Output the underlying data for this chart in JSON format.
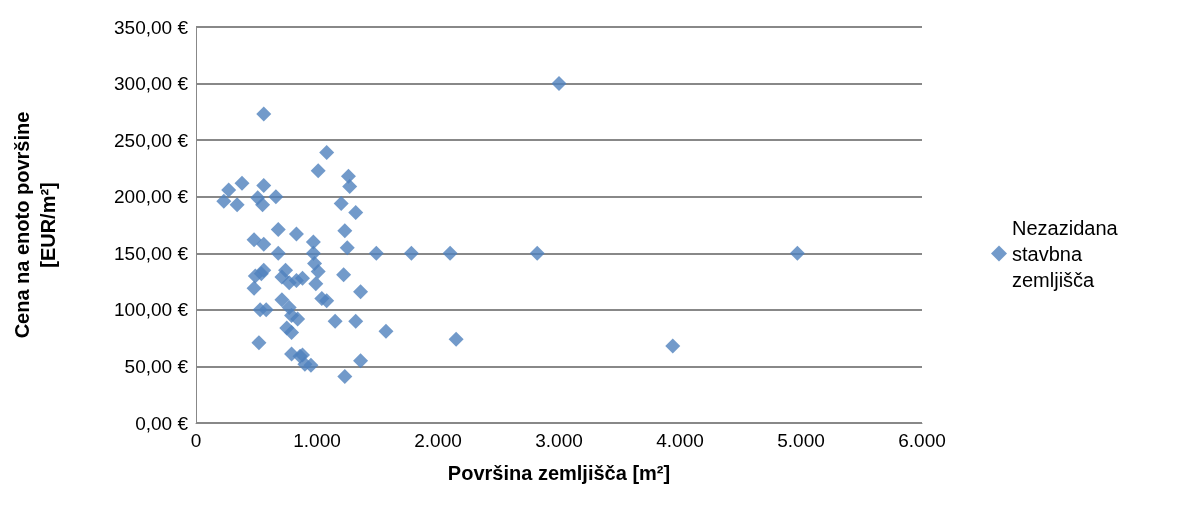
{
  "chart_data": {
    "type": "scatter",
    "xlabel": "Površina zemljišča [m²]",
    "ylabel": "Cena na enoto površine [EUR/m²]",
    "x": [
      3000,
      4970,
      2820,
      2100,
      1780,
      1490,
      3940,
      2150,
      1570,
      1360,
      1230,
      1320,
      1360,
      1220,
      1250,
      1230,
      1200,
      1320,
      1270,
      1260,
      1080,
      1010,
      560,
      510,
      660,
      340,
      230,
      270,
      380,
      560,
      550,
      680,
      830,
      480,
      560,
      680,
      560,
      740,
      490,
      540,
      710,
      770,
      830,
      880,
      970,
      970,
      980,
      1010,
      990,
      1040,
      1080,
      480,
      530,
      580,
      710,
      770,
      790,
      840,
      750,
      790,
      1150,
      520,
      790,
      880,
      900,
      860,
      950
    ],
    "series": [
      {
        "name": "Nezazidana stavbna zemljišča",
        "color": "#4f81bd",
        "values": [
          300,
          150,
          150,
          150,
          150,
          150,
          68,
          74,
          81,
          55,
          41,
          90,
          116,
          131,
          155,
          170,
          194,
          186,
          209,
          218,
          239,
          223,
          273,
          199,
          200,
          193,
          196,
          206,
          212,
          210,
          193,
          171,
          167,
          162,
          158,
          150,
          135,
          135,
          130,
          132,
          129,
          124,
          126,
          128,
          160,
          150,
          141,
          134,
          123,
          110,
          108,
          119,
          100,
          100,
          109,
          102,
          95,
          92,
          84,
          80,
          90,
          71,
          61,
          60,
          52,
          59,
          51
        ]
      }
    ],
    "xlim": [
      0,
      6000
    ],
    "xticks": [
      {
        "value": 0,
        "label": "0"
      },
      {
        "value": 1000,
        "label": "1.000"
      },
      {
        "value": 2000,
        "label": "2.000"
      },
      {
        "value": 3000,
        "label": "3.000"
      },
      {
        "value": 4000,
        "label": "4.000"
      },
      {
        "value": 5000,
        "label": "5.000"
      },
      {
        "value": 6000,
        "label": "6.000"
      }
    ],
    "ylim": [
      0,
      350
    ],
    "yticks": [
      {
        "value": 0,
        "label": "0,00 €"
      },
      {
        "value": 50,
        "label": "50,00 €"
      },
      {
        "value": 100,
        "label": "100,00 €"
      },
      {
        "value": 150,
        "label": "150,00 €"
      },
      {
        "value": 200,
        "label": "200,00 €"
      },
      {
        "value": 250,
        "label": "250,00 €"
      },
      {
        "value": 300,
        "label": "300,00 €"
      },
      {
        "value": 350,
        "label": "350,00 €"
      }
    ],
    "grid": "y",
    "legend": "right",
    "marker": "diamond"
  }
}
